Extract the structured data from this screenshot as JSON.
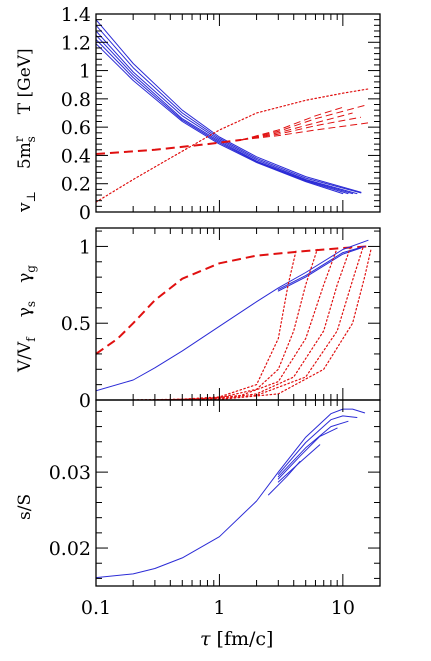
{
  "colors": {
    "blue": "#2b2bd6",
    "red": "#e01010",
    "axis": "#000000"
  },
  "chart_data": [
    {
      "type": "line",
      "panel": "top",
      "xscale": "log",
      "xlim": [
        0.1,
        20
      ],
      "ylim": [
        0,
        1.4
      ],
      "ylabel_parts": [
        "v",
        "⊥",
        "5m",
        "r",
        "s",
        "T [GeV]"
      ],
      "yticks": [
        0,
        0.2,
        0.4,
        0.6,
        0.8,
        1,
        1.2,
        1.4
      ],
      "ytick_labels": [
        "0",
        "0.2",
        "0.4",
        "0.6",
        "0.8",
        "1",
        "1.2",
        "1.4"
      ],
      "series": [
        {
          "color": "blue",
          "style": "solid",
          "x": [
            0.1,
            0.2,
            0.5,
            1,
            2,
            5,
            14
          ],
          "y": [
            1.36,
            1.05,
            0.72,
            0.53,
            0.39,
            0.25,
            0.14
          ]
        },
        {
          "color": "blue",
          "style": "solid",
          "x": [
            0.1,
            0.2,
            0.5,
            1,
            2,
            5,
            14
          ],
          "y": [
            1.32,
            1.02,
            0.7,
            0.52,
            0.38,
            0.24,
            0.135
          ]
        },
        {
          "color": "blue",
          "style": "solid",
          "x": [
            0.1,
            0.2,
            0.5,
            1,
            2,
            5,
            13
          ],
          "y": [
            1.28,
            0.99,
            0.68,
            0.51,
            0.37,
            0.23,
            0.13
          ]
        },
        {
          "color": "blue",
          "style": "solid",
          "x": [
            0.1,
            0.2,
            0.5,
            1,
            2,
            5,
            12
          ],
          "y": [
            1.25,
            0.97,
            0.66,
            0.5,
            0.36,
            0.225,
            0.13
          ]
        },
        {
          "color": "blue",
          "style": "solid",
          "x": [
            0.1,
            0.2,
            0.5,
            1,
            2,
            5,
            11
          ],
          "y": [
            1.22,
            0.95,
            0.65,
            0.49,
            0.355,
            0.22,
            0.13
          ]
        },
        {
          "color": "blue",
          "style": "solid",
          "x": [
            0.1,
            0.2,
            0.5,
            1,
            2,
            5,
            10
          ],
          "y": [
            1.19,
            0.93,
            0.64,
            0.48,
            0.35,
            0.215,
            0.13
          ]
        },
        {
          "color": "red",
          "style": "dotted",
          "x": [
            0.1,
            0.2,
            0.5,
            1,
            2,
            5,
            10,
            16
          ],
          "y": [
            0.07,
            0.23,
            0.43,
            0.58,
            0.7,
            0.79,
            0.84,
            0.87
          ]
        },
        {
          "color": "red",
          "style": "dashed-thick",
          "x": [
            0.1,
            0.3,
            0.8,
            1.5
          ],
          "y": [
            0.41,
            0.44,
            0.48,
            0.51
          ]
        },
        {
          "color": "red",
          "style": "dashed",
          "x": [
            1.5,
            3,
            6,
            16
          ],
          "y": [
            0.51,
            0.54,
            0.58,
            0.63
          ]
        },
        {
          "color": "red",
          "style": "dashed",
          "x": [
            1.5,
            3,
            6,
            14
          ],
          "y": [
            0.51,
            0.55,
            0.61,
            0.67
          ]
        },
        {
          "color": "red",
          "style": "dashed",
          "x": [
            1.5,
            3,
            6,
            12
          ],
          "y": [
            0.51,
            0.56,
            0.63,
            0.7
          ]
        },
        {
          "color": "red",
          "style": "dashed",
          "x": [
            1.5,
            3,
            6,
            16
          ],
          "y": [
            0.51,
            0.57,
            0.66,
            0.76
          ]
        },
        {
          "color": "red",
          "style": "dashed",
          "x": [
            1.5,
            3,
            6,
            10
          ],
          "y": [
            0.51,
            0.58,
            0.68,
            0.74
          ]
        }
      ]
    },
    {
      "type": "line",
      "panel": "middle",
      "xscale": "log",
      "xlim": [
        0.1,
        20
      ],
      "ylim": [
        0,
        1.12
      ],
      "ylabel_parts": [
        "V/V",
        "f",
        "γ",
        "s",
        "γ",
        "g"
      ],
      "yticks": [
        0,
        0.5,
        1
      ],
      "ytick_labels": [
        "0",
        "0.5",
        "1"
      ],
      "series": [
        {
          "color": "red",
          "style": "dashed-thick",
          "x": [
            0.1,
            0.15,
            0.2,
            0.3,
            0.5,
            1,
            2,
            5,
            10,
            16
          ],
          "y": [
            0.3,
            0.4,
            0.5,
            0.65,
            0.79,
            0.89,
            0.94,
            0.97,
            0.99,
            1.0
          ]
        },
        {
          "color": "blue",
          "style": "solid",
          "x": [
            0.1,
            0.2,
            0.3,
            0.5,
            1,
            2,
            3,
            5,
            10,
            16
          ],
          "y": [
            0.06,
            0.13,
            0.21,
            0.32,
            0.48,
            0.64,
            0.73,
            0.83,
            0.98,
            1.04
          ]
        },
        {
          "color": "blue",
          "style": "solid",
          "x": [
            3,
            5,
            10,
            15
          ],
          "y": [
            0.72,
            0.81,
            0.96,
            1.0
          ]
        },
        {
          "color": "blue",
          "style": "solid",
          "x": [
            3,
            5,
            10,
            14
          ],
          "y": [
            0.71,
            0.8,
            0.95,
            0.99
          ]
        },
        {
          "color": "red",
          "style": "dotted",
          "x": [
            0.2,
            0.5,
            1,
            2,
            3,
            3.6,
            4.2
          ],
          "y": [
            0.0,
            0.005,
            0.02,
            0.1,
            0.4,
            0.75,
            0.98
          ]
        },
        {
          "color": "red",
          "style": "dotted",
          "x": [
            0.2,
            0.5,
            1,
            2,
            3,
            4,
            5,
            6.2
          ],
          "y": [
            0.0,
            0.004,
            0.015,
            0.07,
            0.2,
            0.45,
            0.75,
            0.98
          ]
        },
        {
          "color": "red",
          "style": "dotted",
          "x": [
            0.3,
            0.7,
            1.5,
            3,
            5,
            7,
            9
          ],
          "y": [
            0.0,
            0.006,
            0.03,
            0.12,
            0.4,
            0.75,
            0.99
          ]
        },
        {
          "color": "red",
          "style": "dotted",
          "x": [
            0.3,
            1,
            2,
            4,
            7,
            9,
            11.5
          ],
          "y": [
            0.0,
            0.01,
            0.04,
            0.15,
            0.45,
            0.75,
            0.99
          ]
        },
        {
          "color": "red",
          "style": "dotted",
          "x": [
            0.4,
            1,
            2,
            5,
            9,
            12,
            14.5
          ],
          "y": [
            0.0,
            0.006,
            0.03,
            0.15,
            0.45,
            0.78,
            0.99
          ]
        },
        {
          "color": "red",
          "style": "dotted",
          "x": [
            0.5,
            1,
            3,
            7,
            12,
            15,
            17
          ],
          "y": [
            0.0,
            0.004,
            0.04,
            0.2,
            0.5,
            0.8,
            0.99
          ]
        }
      ]
    },
    {
      "type": "line",
      "panel": "bottom",
      "xscale": "log",
      "xlim": [
        0.1,
        20
      ],
      "ylim": [
        0.015,
        0.0395
      ],
      "xlabel_parts": [
        "τ",
        " [fm/c]"
      ],
      "ylabel": "s/S",
      "yticks": [
        0.02,
        0.03
      ],
      "ytick_labels": [
        "0.02",
        "0.03"
      ],
      "xticks": [
        0.1,
        1,
        10
      ],
      "xtick_labels": [
        "0.1",
        "1",
        "10"
      ],
      "series": [
        {
          "color": "blue",
          "style": "solid",
          "x": [
            0.1,
            0.2,
            0.3,
            0.5,
            1,
            2,
            3,
            5,
            8,
            10,
            12,
            15
          ],
          "y": [
            0.0161,
            0.0166,
            0.0173,
            0.0187,
            0.0215,
            0.0262,
            0.03,
            0.0346,
            0.0377,
            0.0383,
            0.0383,
            0.0378
          ]
        },
        {
          "color": "blue",
          "style": "solid",
          "x": [
            3,
            5,
            8,
            10,
            13
          ],
          "y": [
            0.0297,
            0.0339,
            0.0369,
            0.0374,
            0.0372
          ]
        },
        {
          "color": "blue",
          "style": "solid",
          "x": [
            3,
            5,
            8,
            11
          ],
          "y": [
            0.0294,
            0.0332,
            0.036,
            0.0367
          ]
        },
        {
          "color": "blue",
          "style": "solid",
          "x": [
            3,
            4.5,
            6.5,
            9
          ],
          "y": [
            0.0291,
            0.0321,
            0.0347,
            0.0358
          ]
        },
        {
          "color": "blue",
          "style": "solid",
          "x": [
            3,
            4.5,
            6.5
          ],
          "y": [
            0.0287,
            0.0313,
            0.0336
          ]
        },
        {
          "color": "blue",
          "style": "solid",
          "x": [
            2.5,
            3.5,
            4.5
          ],
          "y": [
            0.027,
            0.0294,
            0.0314
          ]
        }
      ]
    }
  ]
}
